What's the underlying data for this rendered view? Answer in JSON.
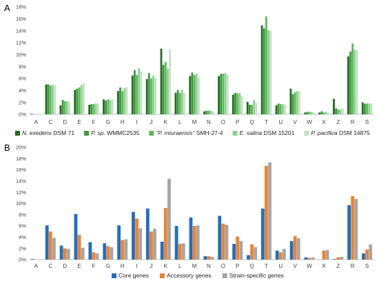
{
  "chart_data": [
    {
      "panel": "A",
      "type": "bar",
      "title": "",
      "xlabel": "",
      "ylabel": "",
      "ylim": [
        0,
        18
      ],
      "y_ticks": [
        "0%",
        "2%",
        "4%",
        "6%",
        "8%",
        "10%",
        "12%",
        "14%",
        "16%",
        "18%"
      ],
      "grid": false,
      "legend_position": "bottom",
      "categories": [
        "A",
        "C",
        "D",
        "E",
        "F",
        "G",
        "H",
        "I",
        "J",
        "K",
        "L",
        "M",
        "N",
        "O",
        "P",
        "Q",
        "T",
        "U",
        "V",
        "W",
        "X",
        "Z",
        "R",
        "S"
      ],
      "series": [
        {
          "name": "N. exedens DSM 71",
          "legend_italic": "N. exedens",
          "legend_plain": " DSM 71",
          "color": "#1e6b1e",
          "values": [
            0.1,
            5.0,
            1.5,
            4.1,
            1.6,
            2.5,
            3.9,
            6.5,
            5.9,
            11.0,
            3.6,
            6.4,
            0.5,
            6.4,
            3.3,
            2.1,
            14.9,
            1.5,
            4.3,
            0.3,
            0.3,
            2.6,
            9.7,
            2.0
          ]
        },
        {
          "name": "P. sp. WMMC2535",
          "legend_italic": "P. sp.",
          "legend_plain": " WMMC2535",
          "color": "#3a9a3a",
          "values": [
            0.0,
            5.0,
            2.4,
            4.3,
            1.7,
            2.3,
            4.5,
            7.4,
            6.9,
            8.3,
            4.1,
            7.0,
            0.6,
            6.8,
            3.6,
            1.6,
            14.4,
            1.8,
            3.4,
            0.4,
            0.5,
            1.0,
            10.5,
            1.8
          ]
        },
        {
          "name": "“P. miuraensis” SMH-27-4",
          "legend_italic": "“P. miuraensis”",
          "legend_plain": " SMH-27-4",
          "color": "#5cb85c",
          "values": [
            0.0,
            4.8,
            2.2,
            4.5,
            1.7,
            2.5,
            3.9,
            6.6,
            6.0,
            8.8,
            3.6,
            6.6,
            0.6,
            6.8,
            3.5,
            1.6,
            16.4,
            1.7,
            3.7,
            0.4,
            0.3,
            0.8,
            11.9,
            1.8
          ]
        },
        {
          "name": "E. salina DSM 15201",
          "legend_italic": "E. salina",
          "legend_plain": " DSM 15201",
          "color": "#8fcf8f",
          "values": [
            0.0,
            4.9,
            2.2,
            4.9,
            1.8,
            2.4,
            4.4,
            7.7,
            6.5,
            7.6,
            4.1,
            6.8,
            0.6,
            6.9,
            3.6,
            2.4,
            14.1,
            1.7,
            3.9,
            0.4,
            0.4,
            0.8,
            10.8,
            1.8
          ]
        },
        {
          "name": "P. pacifica DSM 14875",
          "legend_italic": "P. pacifica",
          "legend_plain": " DSM 14875",
          "color": "#c2e2c2",
          "values": [
            0.0,
            4.9,
            2.1,
            5.3,
            1.8,
            2.5,
            4.6,
            7.2,
            6.1,
            10.9,
            3.5,
            6.2,
            0.5,
            6.7,
            3.1,
            2.0,
            14.0,
            1.6,
            3.9,
            0.3,
            0.3,
            1.0,
            10.7,
            1.8
          ]
        }
      ]
    },
    {
      "panel": "B",
      "type": "bar",
      "title": "",
      "xlabel": "",
      "ylabel": "",
      "ylim": [
        0,
        20
      ],
      "y_ticks": [
        "0%",
        "2%",
        "4%",
        "6%",
        "8%",
        "10%",
        "12%",
        "14%",
        "16%",
        "18%",
        "20%"
      ],
      "grid": false,
      "legend_position": "bottom",
      "categories": [
        "A",
        "C",
        "D",
        "E",
        "F",
        "G",
        "H",
        "I",
        "J",
        "K",
        "L",
        "M",
        "N",
        "O",
        "P",
        "Q",
        "T",
        "U",
        "V",
        "W",
        "X",
        "Z",
        "R",
        "S"
      ],
      "series": [
        {
          "name": "Core genes",
          "legend_italic": "",
          "legend_plain": "Core genes",
          "color": "#1f6fc5",
          "values": [
            0.1,
            6.1,
            2.5,
            8.1,
            3.1,
            2.9,
            6.1,
            8.5,
            9.1,
            3.2,
            6.0,
            7.5,
            0.6,
            7.8,
            2.8,
            0.8,
            9.1,
            1.6,
            3.3,
            0.4,
            0.0,
            0.1,
            9.7,
            1.1
          ]
        },
        {
          "name": "Accessory genes",
          "legend_italic": "",
          "legend_plain": "Accessory genes",
          "color": "#f0822c",
          "values": [
            0.0,
            5.0,
            2.0,
            4.4,
            1.3,
            2.4,
            3.5,
            7.3,
            5.0,
            9.2,
            2.8,
            6.0,
            0.6,
            6.4,
            4.1,
            2.7,
            16.7,
            1.3,
            4.2,
            0.3,
            1.6,
            0.4,
            11.3,
            1.8
          ]
        },
        {
          "name": "Strain-specific genes",
          "legend_italic": "",
          "legend_plain": "Strain-specific genes",
          "color": "#a6a6a6",
          "values": [
            0.0,
            3.9,
            1.9,
            2.1,
            1.1,
            2.2,
            3.6,
            5.6,
            5.5,
            14.4,
            2.9,
            6.1,
            0.5,
            6.2,
            3.3,
            2.2,
            17.3,
            1.9,
            3.8,
            0.4,
            1.7,
            0.5,
            10.8,
            2.7
          ]
        }
      ]
    }
  ]
}
